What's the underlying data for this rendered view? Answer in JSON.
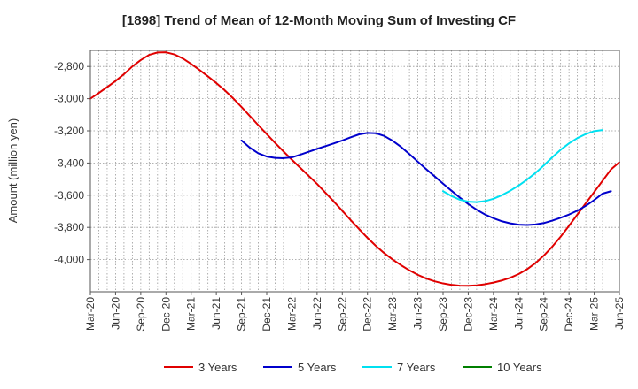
{
  "chart_data": {
    "type": "line",
    "title": "[1898]  Trend of Mean of 12-Month Moving Sum of Investing CF",
    "xlabel": "",
    "ylabel": "Amount (million yen)",
    "x_ticks": [
      "Mar-20",
      "Jun-20",
      "Sep-20",
      "Dec-20",
      "Mar-21",
      "Jun-21",
      "Sep-21",
      "Dec-21",
      "Mar-22",
      "Jun-22",
      "Sep-22",
      "Dec-22",
      "Mar-23",
      "Jun-23",
      "Sep-23",
      "Dec-23",
      "Mar-24",
      "Jun-24",
      "Sep-24",
      "Dec-24",
      "Mar-25",
      "Jun-25"
    ],
    "y_ticks": [
      -2800,
      -3000,
      -3200,
      -3400,
      -3600,
      -3800,
      -4000
    ],
    "y_tick_labels": [
      "-2,800",
      "-3,000",
      "-3,200",
      "-3,400",
      "-3,600",
      "-3,800",
      "-4,000"
    ],
    "ylim": [
      -4200,
      -2700
    ],
    "grid": true,
    "legend_position": "bottom",
    "series": [
      {
        "name": "3 Years",
        "color": "#e00000",
        "x_start": 0,
        "values": [
          -3000,
          -2965,
          -2928,
          -2890,
          -2848,
          -2800,
          -2760,
          -2728,
          -2713,
          -2712,
          -2725,
          -2750,
          -2784,
          -2822,
          -2862,
          -2903,
          -2948,
          -2998,
          -3052,
          -3108,
          -3165,
          -3220,
          -3275,
          -3328,
          -3380,
          -3430,
          -3480,
          -3530,
          -3585,
          -3640,
          -3697,
          -3755,
          -3810,
          -3865,
          -3915,
          -3960,
          -4000,
          -4035,
          -4067,
          -4095,
          -4118,
          -4135,
          -4148,
          -4157,
          -4162,
          -4163,
          -4160,
          -4153,
          -4143,
          -4130,
          -4113,
          -4090,
          -4060,
          -4022,
          -3975,
          -3920,
          -3858,
          -3790,
          -3720,
          -3650,
          -3580,
          -3510,
          -3440,
          -3395
        ]
      },
      {
        "name": "5 Years",
        "color": "#0000cc",
        "x_start": 18,
        "values": [
          -3260,
          -3305,
          -3340,
          -3360,
          -3368,
          -3370,
          -3365,
          -3348,
          -3330,
          -3312,
          -3295,
          -3278,
          -3260,
          -3240,
          -3222,
          -3213,
          -3215,
          -3232,
          -3262,
          -3300,
          -3345,
          -3392,
          -3438,
          -3483,
          -3528,
          -3572,
          -3615,
          -3655,
          -3690,
          -3720,
          -3743,
          -3762,
          -3775,
          -3783,
          -3785,
          -3782,
          -3773,
          -3758,
          -3740,
          -3720,
          -3696,
          -3666,
          -3630,
          -3590,
          -3575
        ]
      },
      {
        "name": "7 Years",
        "color": "#00e0f0",
        "x_start": 42,
        "values": [
          -3575,
          -3605,
          -3628,
          -3640,
          -3643,
          -3637,
          -3622,
          -3600,
          -3572,
          -3540,
          -3503,
          -3462,
          -3415,
          -3365,
          -3318,
          -3278,
          -3245,
          -3220,
          -3202,
          -3195
        ]
      },
      {
        "name": "10 Years",
        "color": "#007f00",
        "x_start": 0,
        "values": []
      }
    ]
  }
}
